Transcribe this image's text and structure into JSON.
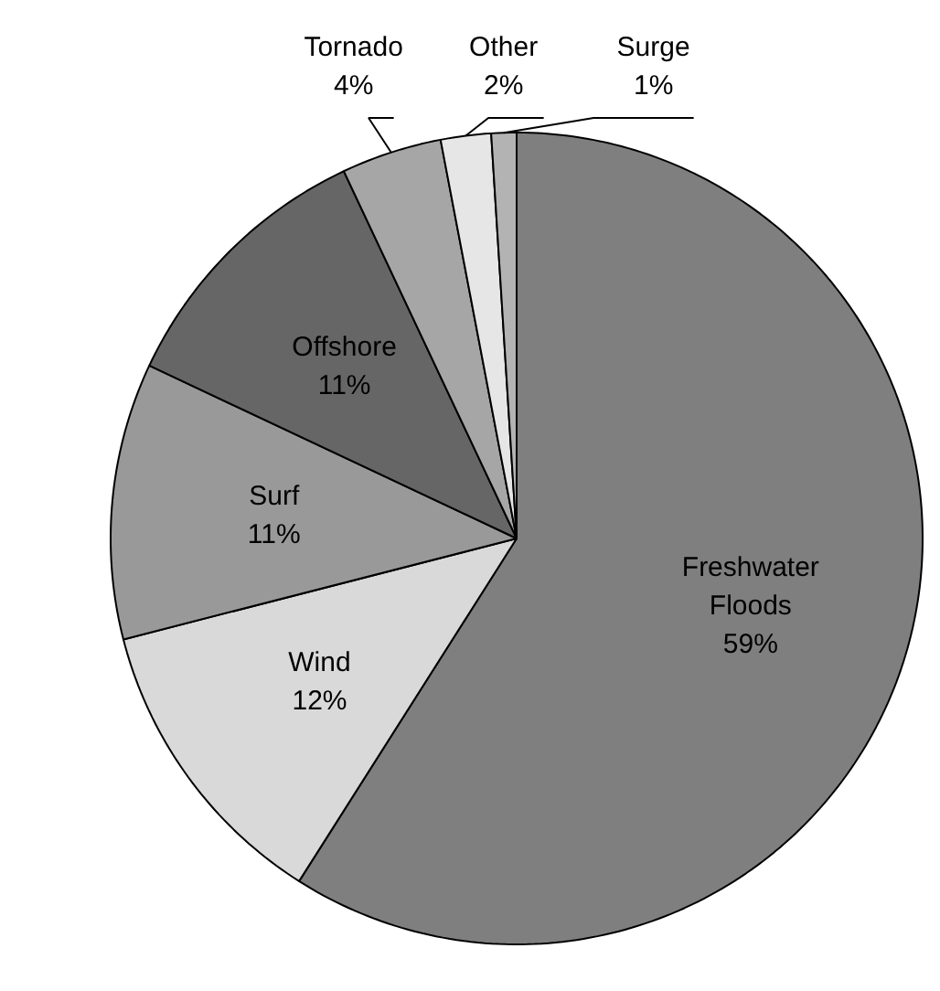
{
  "chart_data": {
    "type": "pie",
    "categories": [
      "Freshwater Floods",
      "Wind",
      "Surf",
      "Offshore",
      "Tornado",
      "Other",
      "Surge"
    ],
    "values": [
      59,
      12,
      11,
      11,
      4,
      2,
      1
    ],
    "value_labels": [
      "59%",
      "12%",
      "11%",
      "11%",
      "4%",
      "2%",
      "1%"
    ],
    "colors": [
      "#7f7f7f",
      "#d9d9d9",
      "#999999",
      "#666666",
      "#a6a6a6",
      "#e6e6e6",
      "#b3b3b3"
    ]
  }
}
